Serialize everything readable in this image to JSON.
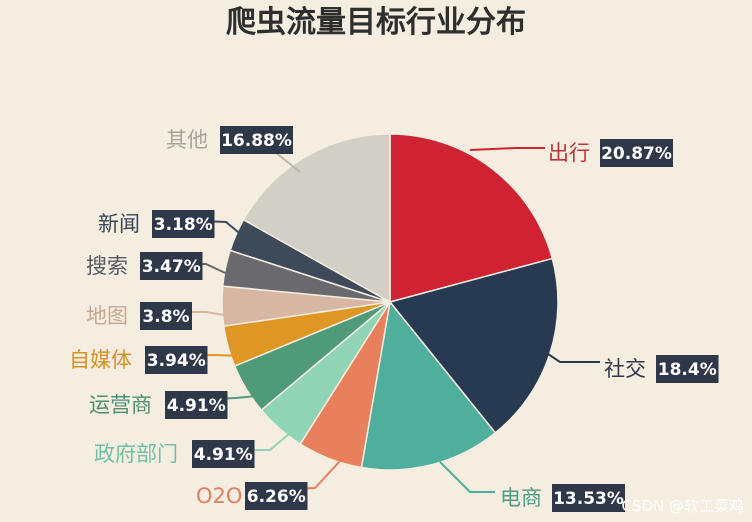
{
  "chart_data": {
    "type": "pie",
    "title": "爬虫流量目标行业分布",
    "slices": [
      {
        "label": "出行",
        "value": 20.87,
        "value_label": "20.87%",
        "color": "#cf2233"
      },
      {
        "label": "社交",
        "value": 18.4,
        "value_label": "18.4%",
        "color": "#283a52"
      },
      {
        "label": "电商",
        "value": 13.53,
        "value_label": "13.53%",
        "color": "#4fae9c"
      },
      {
        "label": "O2O",
        "value": 6.26,
        "value_label": "6.26%",
        "color": "#e9805d"
      },
      {
        "label": "政府部门",
        "value": 4.91,
        "value_label": "4.91%",
        "color": "#8fd5b5"
      },
      {
        "label": "运营商",
        "value": 4.91,
        "value_label": "4.91%",
        "color": "#4f9a78"
      },
      {
        "label": "自媒体",
        "value": 3.94,
        "value_label": "3.94%",
        "color": "#e09624"
      },
      {
        "label": "地图",
        "value": 3.8,
        "value_label": "3.8%",
        "color": "#d7b7a3"
      },
      {
        "label": "搜索",
        "value": 3.47,
        "value_label": "3.47%",
        "color": "#6a6a6e"
      },
      {
        "label": "新闻",
        "value": 3.18,
        "value_label": "3.18%",
        "color": "#3e4a5a"
      },
      {
        "label": "其他",
        "value": 16.88,
        "value_label": "16.88%",
        "color": "#d1cfc6"
      }
    ]
  },
  "watermark": "CSDN @软工菜鸡"
}
